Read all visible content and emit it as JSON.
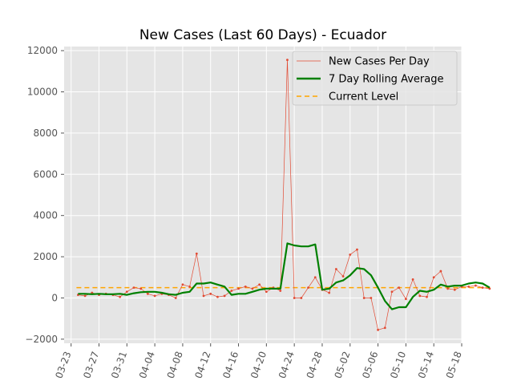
{
  "chart_data": {
    "type": "line",
    "title": "New Cases (Last 60 Days) - Ecuador",
    "xlabel": "",
    "ylabel": "",
    "x_type": "date",
    "year": 2020,
    "xlim": [
      "2020-03-22",
      "2020-05-18"
    ],
    "ylim": [
      -2200,
      12200
    ],
    "grid": true,
    "legend_position": "top-right",
    "x_ticks": [
      "03-23",
      "03-27",
      "03-31",
      "04-04",
      "04-08",
      "04-12",
      "04-16",
      "04-20",
      "04-24",
      "04-28",
      "05-02",
      "05-06",
      "05-10",
      "05-14",
      "05-18"
    ],
    "y_ticks": [
      "−2000",
      "0",
      "2000",
      "4000",
      "6000",
      "8000",
      "10000",
      "12000"
    ],
    "y_tick_values": [
      -2000,
      0,
      2000,
      4000,
      6000,
      8000,
      10000,
      12000
    ],
    "dates": [
      "2020-03-24",
      "2020-03-25",
      "2020-03-26",
      "2020-03-27",
      "2020-03-28",
      "2020-03-29",
      "2020-03-30",
      "2020-03-31",
      "2020-04-01",
      "2020-04-02",
      "2020-04-03",
      "2020-04-04",
      "2020-04-05",
      "2020-04-06",
      "2020-04-07",
      "2020-04-08",
      "2020-04-09",
      "2020-04-10",
      "2020-04-11",
      "2020-04-12",
      "2020-04-13",
      "2020-04-14",
      "2020-04-15",
      "2020-04-16",
      "2020-04-17",
      "2020-04-18",
      "2020-04-19",
      "2020-04-20",
      "2020-04-21",
      "2020-04-22",
      "2020-04-23",
      "2020-04-24",
      "2020-04-25",
      "2020-04-26",
      "2020-04-27",
      "2020-04-28",
      "2020-04-29",
      "2020-04-30",
      "2020-05-01",
      "2020-05-02",
      "2020-05-03",
      "2020-05-04",
      "2020-05-05",
      "2020-05-06",
      "2020-05-07",
      "2020-05-08",
      "2020-05-09",
      "2020-05-10",
      "2020-05-11",
      "2020-05-12",
      "2020-05-13",
      "2020-05-14",
      "2020-05-15"
    ],
    "series": [
      {
        "name": "New Cases Per Day",
        "color": "#e24a33",
        "style": "thin-line-with-dots",
        "values": [
          150,
          100,
          250,
          150,
          200,
          150,
          50,
          300,
          500,
          450,
          200,
          100,
          200,
          150,
          0,
          650,
          550,
          2150,
          100,
          200,
          50,
          100,
          350,
          450,
          550,
          450,
          650,
          300,
          500,
          350,
          11550,
          0,
          0,
          500,
          1000,
          400,
          250,
          1400,
          1050,
          2100,
          2350,
          0,
          0,
          -1550,
          -1450,
          300,
          500,
          -50,
          900,
          100,
          50,
          1000,
          1300
        ]
      },
      {
        "name": "7 Day Rolling Average",
        "color": "#008000",
        "style": "thick-line",
        "values": [
          200,
          200,
          180,
          200,
          180,
          180,
          200,
          150,
          230,
          280,
          300,
          300,
          250,
          180,
          150,
          250,
          300,
          700,
          700,
          750,
          650,
          550,
          150,
          200,
          200,
          300,
          400,
          450,
          450,
          450,
          2650,
          2550,
          2500,
          2500,
          2600,
          400,
          450,
          750,
          850,
          1100,
          1450,
          1400,
          1100,
          500,
          -150,
          -550,
          -450,
          -450,
          50,
          350,
          300,
          400,
          650
        ]
      },
      {
        "name": "Current Level",
        "color": "#ffa500",
        "style": "dashed",
        "constant": 500
      }
    ],
    "tail": {
      "cases_dates": [
        "2020-05-16",
        "2020-05-17",
        "2020-05-18",
        "2020-05-19",
        "2020-05-20",
        "2020-05-21",
        "2020-05-22"
      ],
      "cases_values": [
        450,
        400,
        550,
        550,
        600,
        500,
        450
      ],
      "avg_dates": [
        "2020-05-16",
        "2020-05-17",
        "2020-05-18",
        "2020-05-19",
        "2020-05-20",
        "2020-05-21",
        "2020-05-22"
      ],
      "avg_values": [
        550,
        600,
        600,
        700,
        750,
        700,
        500
      ]
    },
    "legend": [
      {
        "label": "New Cases Per Day",
        "color": "#e24a33",
        "style": "thin"
      },
      {
        "label": "7 Day Rolling Average",
        "color": "#008000",
        "style": "thick"
      },
      {
        "label": "Current Level",
        "color": "#ffa500",
        "style": "dashed"
      }
    ]
  }
}
